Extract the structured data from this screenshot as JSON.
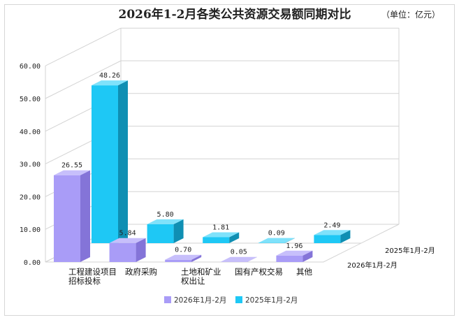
{
  "chart_data": {
    "type": "bar",
    "title": "2026年1-2月各类公共资源交易额同期对比",
    "unit": "（单位：亿元）",
    "categories": [
      [
        "工程建设项目",
        "招标投标"
      ],
      [
        "政府采购"
      ],
      [
        "土地和矿业",
        "权出让"
      ],
      [
        "国有产权交易"
      ],
      [
        "其他"
      ]
    ],
    "series": [
      {
        "name": "2026年1月-2月",
        "values": [
          26.55,
          5.84,
          0.7,
          0.05,
          1.96
        ],
        "labels": [
          "26.55",
          "5.84",
          "0.70",
          "0.05",
          "1.96"
        ]
      },
      {
        "name": "2025年1月-2月",
        "values": [
          48.26,
          5.8,
          1.81,
          0.09,
          2.49
        ],
        "labels": [
          "48.26",
          "5.80",
          "1.81",
          "0.09",
          "2.49"
        ]
      }
    ],
    "ylim": [
      0,
      60
    ],
    "yticks": [
      "0.00",
      "10.00",
      "20.00",
      "30.00",
      "40.00",
      "50.00",
      "60.00"
    ],
    "grid": true,
    "legend_position": "bottom",
    "colors": {
      "series_2026": {
        "front": "#a99cf7",
        "side": "#8474d8",
        "top": "#c7bffb"
      },
      "series_2025": {
        "front": "#1ec8f5",
        "side": "#0f8fb3",
        "top": "#7fe2fb"
      },
      "grid": "#d3d3d3"
    }
  }
}
